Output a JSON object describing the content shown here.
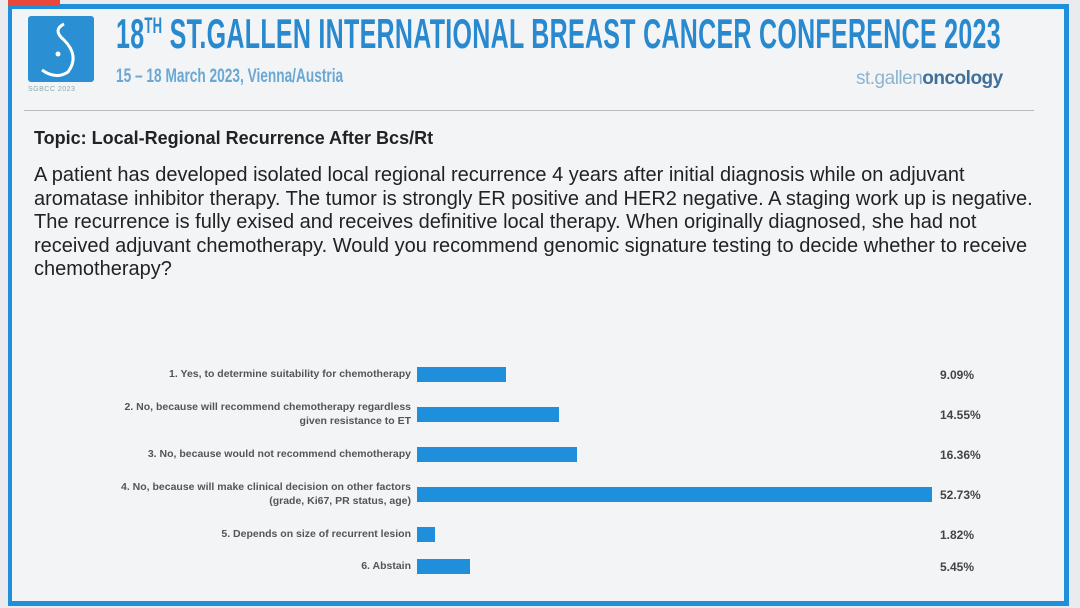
{
  "header": {
    "title_main": "18",
    "title_sup": "TH",
    "title_rest": " ST.GALLEN INTERNATIONAL BREAST CANCER CONFERENCE 2023",
    "subtitle": "15 – 18 March 2023, Vienna/Austria",
    "logo_caption": "SGBCC 2023",
    "brand_light": "st.gallen",
    "brand_dark": "oncology"
  },
  "topic": "Topic: Local-Regional Recurrence After Bcs/Rt",
  "question": "A patient has developed isolated local regional recurrence 4 years after initial diagnosis while on adjuvant aromatase inhibitor therapy. The tumor is strongly ER positive and HER2 negative. A staging work up is negative. The recurrence is fully exised and receives definitive local therapy. When originally diagnosed, she had not received adjuvant chemotherapy. Would you recommend genomic signature testing to decide whether to receive chemotherapy?",
  "chart_data": {
    "type": "bar",
    "orientation": "horizontal",
    "categories": [
      "1.  Yes, to determine suitability for chemotherapy",
      "2.  No, because will recommend chemotherapy regardless given resistance to ET",
      "3.  No, because would not recommend chemotherapy",
      "4.  No, because will make clinical decision on other factors (grade, Ki67, PR status, age)",
      "5.  Depends on size of recurrent lesion",
      "6.  Abstain"
    ],
    "category_lines": [
      [
        "1.  Yes, to determine suitability for chemotherapy"
      ],
      [
        "2.  No, because will recommend chemotherapy regardless",
        "given resistance to ET"
      ],
      [
        "3.  No, because would not recommend chemotherapy"
      ],
      [
        "4.  No, because will make clinical decision on other factors",
        "(grade, Ki67, PR status, age)"
      ],
      [
        "5.  Depends on size of recurrent lesion"
      ],
      [
        "6.  Abstain"
      ]
    ],
    "values": [
      9.09,
      14.55,
      16.36,
      52.73,
      1.82,
      5.45
    ],
    "labels": [
      "9.09%",
      "14.55%",
      "16.36%",
      "52.73%",
      "1.82%",
      "5.45%"
    ],
    "bar_color": "#1f8fdc",
    "grid": false
  }
}
